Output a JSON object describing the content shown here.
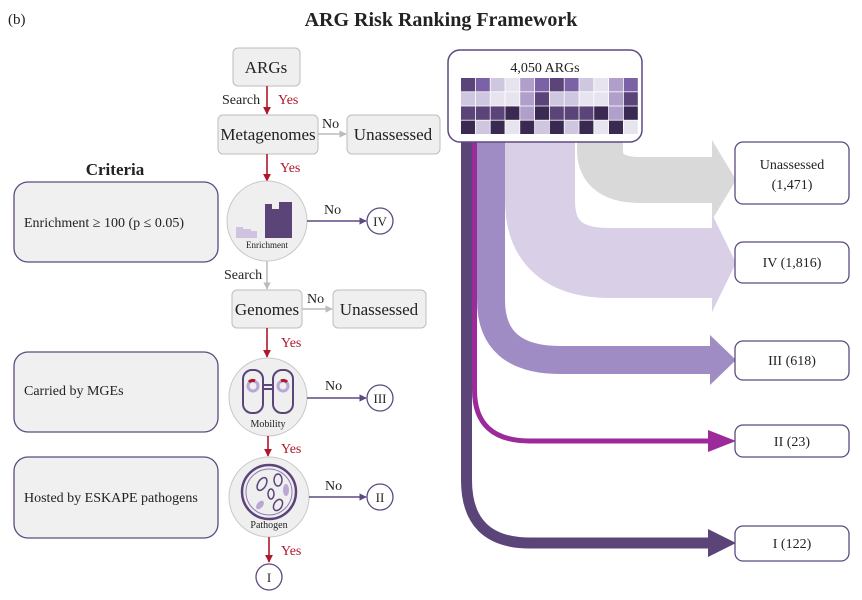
{
  "panel_label": "(b)",
  "title": "ARG Risk Ranking Framework",
  "colors": {
    "yes_arrow": "#b0182a",
    "no_arrow": "#5d4a80",
    "box_fill": "#efefef",
    "box_border": "#bdbdbd",
    "criteria_border": "#5d4a80",
    "flow_unassessed": "#d9d9d9",
    "flow_iv": "#d9d0e7",
    "flow_iii": "#9f8cc4",
    "flow_ii": "#9c2a9a",
    "flow_i": "#5a4478"
  },
  "flowchart": {
    "args": "ARGs",
    "search1": "Search",
    "yes1": "Yes",
    "metagenomes": "Metagenomes",
    "no1": "No",
    "unassessed1": "Unassessed",
    "yes2": "Yes",
    "enrichment": "Enrichment",
    "no2": "No",
    "tier_iv": "IV",
    "search2": "Search",
    "genomes": "Genomes",
    "no3": "No",
    "unassessed2": "Unassessed",
    "yes3": "Yes",
    "mobility": "Mobility",
    "no4": "No",
    "tier_iii": "III",
    "yes4": "Yes",
    "pathogen": "Pathogen",
    "no5": "No",
    "tier_ii": "II",
    "yes5": "Yes",
    "tier_i": "I"
  },
  "criteria": {
    "heading": "Criteria",
    "items": [
      "Enrichment ≥ 100 (p ≤ 0.05)",
      "Carried by MGEs",
      "Hosted by ESKAPE pathogens"
    ]
  },
  "sankey": {
    "source": "4,050 ARGs",
    "outputs": [
      {
        "label": "Unassessed",
        "count": "(1,471)",
        "value": 1471
      },
      {
        "label": "IV (1,816)",
        "value": 1816
      },
      {
        "label": "III (618)",
        "value": 618
      },
      {
        "label": "II (23)",
        "value": 23
      },
      {
        "label": "I (122)",
        "value": 122
      }
    ],
    "heatmap": [
      [
        4,
        3,
        1,
        0,
        2,
        3,
        4,
        3,
        1,
        0,
        2,
        3
      ],
      [
        1,
        1,
        0,
        0,
        2,
        4,
        1,
        1,
        0,
        0,
        2,
        4
      ],
      [
        4,
        4,
        4,
        5,
        2,
        5,
        4,
        4,
        4,
        5,
        2,
        5
      ],
      [
        5,
        1,
        5,
        0,
        5,
        1,
        5,
        1,
        5,
        0,
        5,
        0
      ]
    ]
  }
}
